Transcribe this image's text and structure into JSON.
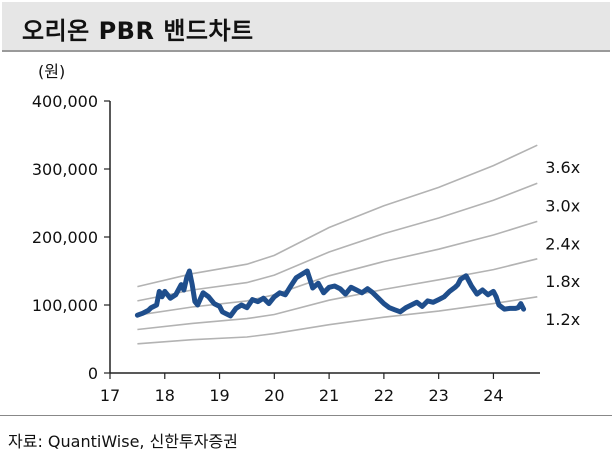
{
  "header": {
    "title": "오리온 PBR 밴드차트"
  },
  "unit_label": "(원)",
  "source": "자료: QuantiWise, 신한투자증권",
  "colors": {
    "price": "#1f4e8c",
    "band": "#b3b3b3",
    "axis": "#222222"
  },
  "chart_data": {
    "type": "line",
    "title": "오리온 PBR 밴드차트",
    "ylabel": "(원)",
    "ylim": [
      0,
      400000
    ],
    "xlim": [
      17,
      24.85
    ],
    "y_ticks": [
      0,
      100000,
      200000,
      300000,
      400000
    ],
    "y_tick_labels": [
      "0",
      "100,000",
      "200,000",
      "300,000",
      "400,000"
    ],
    "x_ticks": [
      17,
      18,
      19,
      20,
      21,
      22,
      23,
      24
    ],
    "x_tick_labels": [
      "17",
      "18",
      "19",
      "20",
      "21",
      "22",
      "23",
      "24"
    ],
    "grid": false,
    "bands": [
      {
        "label": "3.6x",
        "x": [
          17.5,
          18.5,
          19.5,
          20.0,
          21.0,
          22.0,
          23.0,
          24.0,
          24.8
        ],
        "y": [
          127000,
          146000,
          160000,
          173000,
          214000,
          246000,
          273000,
          305000,
          335000
        ]
      },
      {
        "label": "3.0x",
        "x": [
          17.5,
          18.5,
          19.5,
          20.0,
          21.0,
          22.0,
          23.0,
          24.0,
          24.8
        ],
        "y": [
          106000,
          122000,
          133000,
          144000,
          178000,
          205000,
          228000,
          254000,
          279000
        ]
      },
      {
        "label": "2.4x",
        "x": [
          17.5,
          18.5,
          19.5,
          20.0,
          21.0,
          22.0,
          23.0,
          24.0,
          24.8
        ],
        "y": [
          85000,
          97000,
          106000,
          115000,
          143000,
          164000,
          182000,
          203000,
          223000
        ]
      },
      {
        "label": "1.8x",
        "x": [
          17.5,
          18.5,
          19.5,
          20.0,
          21.0,
          22.0,
          23.0,
          24.0,
          24.8
        ],
        "y": [
          64000,
          73000,
          80000,
          86000,
          107000,
          123000,
          137000,
          152000,
          168000
        ]
      },
      {
        "label": "1.2x",
        "x": [
          17.5,
          18.5,
          19.5,
          20.0,
          21.0,
          22.0,
          23.0,
          24.0,
          24.8
        ],
        "y": [
          43000,
          49000,
          53000,
          58000,
          71000,
          82000,
          91000,
          102000,
          112000
        ]
      }
    ],
    "series": [
      {
        "x": [
          17.5,
          17.6,
          17.7,
          17.75,
          17.85,
          17.9,
          17.95,
          18.0,
          18.1,
          18.2,
          18.3,
          18.35,
          18.4,
          18.45,
          18.5,
          18.55,
          18.6,
          18.7,
          18.8,
          18.9,
          19.0,
          19.05,
          19.1,
          19.2,
          19.3,
          19.4,
          19.5,
          19.6,
          19.7,
          19.8,
          19.9,
          20.0,
          20.1,
          20.2,
          20.3,
          20.4,
          20.5,
          20.6,
          20.65,
          20.7,
          20.8,
          20.9,
          21.0,
          21.1,
          21.2,
          21.3,
          21.4,
          21.5,
          21.6,
          21.7,
          21.8,
          21.9,
          22.0,
          22.1,
          22.2,
          22.3,
          22.4,
          22.5,
          22.6,
          22.7,
          22.8,
          22.9,
          23.0,
          23.1,
          23.2,
          23.3,
          23.35,
          23.4,
          23.5,
          23.6,
          23.7,
          23.8,
          23.9,
          24.0,
          24.05,
          24.1,
          24.2,
          24.3,
          24.4,
          24.45,
          24.5,
          24.55
        ],
        "y": [
          85000,
          88000,
          92000,
          96000,
          100000,
          120000,
          112000,
          120000,
          110000,
          115000,
          130000,
          122000,
          140000,
          150000,
          130000,
          105000,
          100000,
          118000,
          112000,
          102000,
          98000,
          90000,
          88000,
          84000,
          95000,
          100000,
          96000,
          108000,
          105000,
          110000,
          102000,
          112000,
          118000,
          115000,
          128000,
          140000,
          145000,
          150000,
          138000,
          125000,
          132000,
          118000,
          126000,
          128000,
          124000,
          116000,
          126000,
          122000,
          118000,
          124000,
          118000,
          110000,
          102000,
          96000,
          93000,
          90000,
          96000,
          100000,
          104000,
          98000,
          106000,
          104000,
          108000,
          112000,
          120000,
          126000,
          130000,
          138000,
          143000,
          128000,
          116000,
          122000,
          115000,
          120000,
          112000,
          100000,
          94000,
          95000,
          95000,
          96000,
          102000,
          94000
        ]
      }
    ]
  }
}
